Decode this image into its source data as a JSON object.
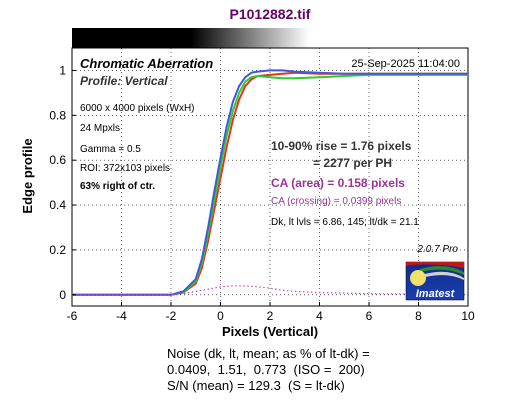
{
  "file_title": "P1012882.tif",
  "header": {
    "title": "Chromatic Aberration",
    "subtitle": "Profile: Vertical",
    "datetime": "25-Sep-2025 11:04:00"
  },
  "info": {
    "pixels": "6000 x 4000 pixels (WxH)",
    "mpxls": "24 Mpxls",
    "gamma": "Gamma = 0.5",
    "roi": "ROI: 372x103 pixels",
    "position": "63% right of ctr."
  },
  "results": {
    "rise": "10-90% rise = 1.76 pixels",
    "per_ph": "= 2277 per PH",
    "ca_area": "CA (area) = 0.158 pixels",
    "ca_crossing": "CA (crossing) = 0.0399 pixels",
    "dk": "Dk, lt lvls = 6.86, 145;  lt/dk = 21.1"
  },
  "version": "2.0.7  Pro",
  "logo_text": "Imatest",
  "footer": {
    "line1": "Noise (dk, lt, mean; as % of lt-dk) =",
    "line2": "0.0409,  1.51,  0.773  (ISO =  200)",
    "line3": "S/N (mean) = 129.3  (S = lt-dk)"
  },
  "colors": {
    "red": "#e8321e",
    "green": "#2ecc2e",
    "blue": "#3c5adc",
    "magenta": "#c83cc8",
    "results_text": "#333333",
    "ca_text": "#993399",
    "title_text": "#660066"
  },
  "chart_data": {
    "type": "line",
    "xlabel": "Pixels (Vertical)",
    "ylabel": "Edge profile",
    "xlim": [
      -6,
      10
    ],
    "ylim": [
      -0.05,
      1.1
    ],
    "x_ticks": [
      -6,
      -4,
      -2,
      0,
      2,
      4,
      6,
      8,
      10
    ],
    "y_ticks": [
      0,
      0.2,
      0.4,
      0.6,
      0.8,
      1
    ],
    "grid": true,
    "series": [
      {
        "color": "red",
        "x": [
          -6,
          -3,
          -2,
          -1.5,
          -1,
          -0.75,
          -0.5,
          -0.25,
          0,
          0.25,
          0.5,
          0.75,
          1,
          1.25,
          1.5,
          2,
          2.5,
          3,
          4,
          5,
          6,
          8,
          10
        ],
        "y": [
          0,
          0,
          0,
          0.01,
          0.05,
          0.12,
          0.24,
          0.38,
          0.52,
          0.66,
          0.78,
          0.87,
          0.93,
          0.96,
          0.975,
          0.98,
          0.985,
          0.99,
          0.985,
          0.985,
          0.985,
          0.985,
          0.985
        ]
      },
      {
        "color": "green",
        "x": [
          -6,
          -3,
          -2,
          -1.5,
          -1,
          -0.75,
          -0.5,
          -0.25,
          0,
          0.25,
          0.5,
          0.75,
          1,
          1.25,
          1.5,
          2,
          2.5,
          3,
          4,
          5,
          6,
          8,
          10
        ],
        "y": [
          0,
          0,
          0,
          0.01,
          0.06,
          0.14,
          0.27,
          0.42,
          0.57,
          0.71,
          0.82,
          0.9,
          0.95,
          0.97,
          0.975,
          0.97,
          0.965,
          0.965,
          0.97,
          0.975,
          0.98,
          0.98,
          0.98
        ]
      },
      {
        "color": "blue",
        "x": [
          -6,
          -3,
          -2,
          -1.5,
          -1,
          -0.75,
          -0.5,
          -0.25,
          0,
          0.25,
          0.5,
          0.75,
          1,
          1.25,
          1.5,
          2,
          2.5,
          3,
          4,
          5,
          6,
          8,
          10
        ],
        "y": [
          0,
          0,
          0,
          0.015,
          0.07,
          0.16,
          0.3,
          0.46,
          0.61,
          0.75,
          0.86,
          0.93,
          0.97,
          0.99,
          0.995,
          1.0,
          1.0,
          0.995,
          0.99,
          0.985,
          0.985,
          0.985,
          0.985
        ]
      },
      {
        "color": "magenta",
        "style": "dotted",
        "x": [
          -6,
          -2,
          -1.5,
          -1,
          -0.5,
          0,
          0.5,
          1,
          1.5,
          2,
          2.5,
          3,
          4,
          6,
          8,
          10
        ],
        "y": [
          0,
          0,
          0.005,
          0.015,
          0.025,
          0.035,
          0.04,
          0.04,
          0.035,
          0.03,
          0.02,
          0.015,
          0.01,
          0.005,
          0.003,
          0.002
        ]
      }
    ]
  }
}
